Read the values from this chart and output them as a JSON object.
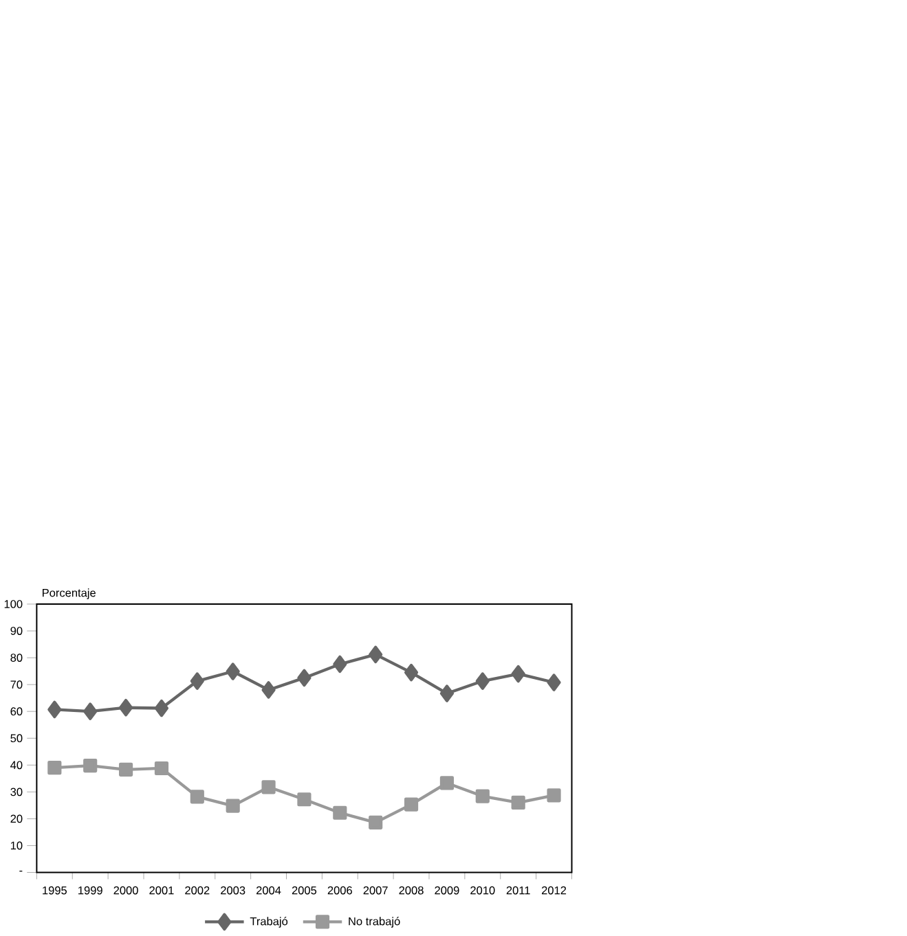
{
  "chart_data": {
    "type": "line",
    "ylabel": "Porcentaje",
    "categories": [
      "1995",
      "1999",
      "2000",
      "2001",
      "2002",
      "2003",
      "2004",
      "2005",
      "2006",
      "2007",
      "2008",
      "2009",
      "2010",
      "2011",
      "2012"
    ],
    "series": [
      {
        "name": "Trabajó",
        "color": "#666666",
        "marker": "diamond",
        "values": [
          60.7,
          60.0,
          61.4,
          61.2,
          71.3,
          74.9,
          68.0,
          72.5,
          77.6,
          81.2,
          74.5,
          66.7,
          71.3,
          74.0,
          70.8
        ]
      },
      {
        "name": "No trabajó",
        "color": "#999999",
        "marker": "square",
        "values": [
          39.0,
          39.8,
          38.3,
          38.8,
          28.2,
          24.8,
          31.8,
          27.2,
          22.2,
          18.6,
          25.3,
          33.3,
          28.4,
          26.0,
          28.7
        ]
      }
    ],
    "ylim": [
      0,
      100
    ],
    "yticks": [
      {
        "value": 0,
        "label": "-"
      },
      10,
      20,
      30,
      40,
      50,
      60,
      70,
      80,
      90,
      100
    ],
    "grid": false,
    "legend": "bottom",
    "line_style": "solid"
  }
}
